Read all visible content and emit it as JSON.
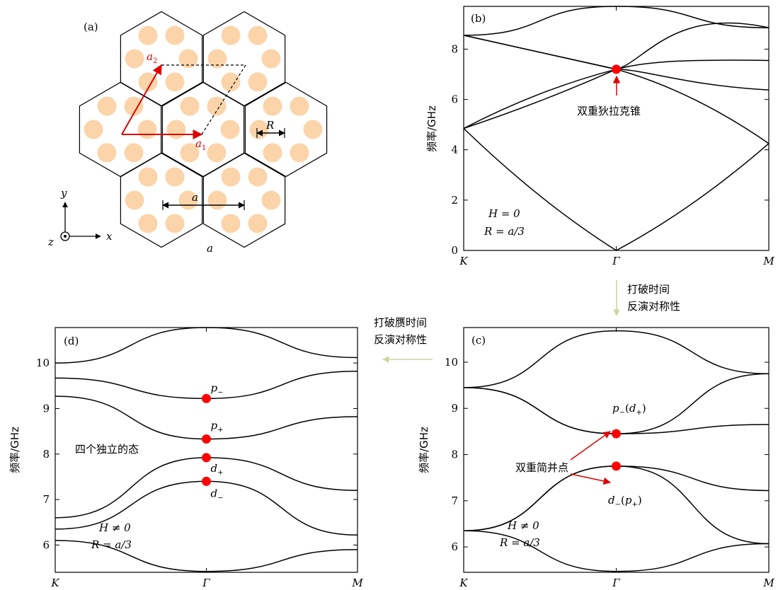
{
  "colors": {
    "cylinder": "#fcd4aa",
    "vector": "#e00000",
    "dirac_point": "#ff0000",
    "transition_arrow": "#c9d8a4",
    "line": "#000000"
  },
  "panel_a": {
    "label": "(a)",
    "vectors": {
      "a1_base": "a",
      "a1_sub": "1",
      "a2_base": "a",
      "a2_sub": "2"
    },
    "radius_label": "R",
    "lattice_label": "a",
    "bottom_label": "a",
    "axes": {
      "y": "y",
      "x": "x",
      "z": "z"
    }
  },
  "arrow_b_to_c": {
    "line1": "打破时间",
    "line2": "反演对称性"
  },
  "arrow_c_to_d": {
    "line1": "打破赝时间",
    "line2": "反演对称性"
  },
  "chart_data": [
    {
      "id": "b",
      "type": "line",
      "label": "(b)",
      "ylabel": "频率/GHz",
      "x_ticks": [
        "K",
        "Γ",
        "M"
      ],
      "ylim": [
        0,
        9.7
      ],
      "yticks": [
        0,
        2,
        4,
        6,
        8
      ],
      "grid": false,
      "params": [
        "H = 0",
        "R = a/3"
      ],
      "annotations": [
        {
          "text": "双重狄拉克锥",
          "points": [
            {
              "x": "Γ",
              "y": 7.2
            }
          ]
        }
      ],
      "series": [
        {
          "values": [
            [
              0,
              8.55
            ],
            [
              0.5,
              9.7
            ],
            [
              1,
              8.85
            ]
          ]
        },
        {
          "values": [
            [
              0,
              8.55
            ],
            [
              0.5,
              7.2
            ],
            [
              1,
              8.85
            ]
          ]
        },
        {
          "values": [
            [
              0,
              8.55
            ],
            [
              0.5,
              7.2
            ],
            [
              1,
              7.55
            ]
          ]
        },
        {
          "values": [
            [
              0,
              4.85
            ],
            [
              0.5,
              7.2
            ],
            [
              1,
              6.38
            ]
          ]
        },
        {
          "values": [
            [
              0,
              4.85
            ],
            [
              0.5,
              7.2
            ],
            [
              1,
              4.25
            ]
          ]
        },
        {
          "values": [
            [
              0,
              4.85
            ],
            [
              0.5,
              0
            ],
            [
              1,
              4.25
            ]
          ]
        }
      ]
    },
    {
      "id": "c",
      "type": "line",
      "label": "(c)",
      "ylabel": "频率/GHz",
      "x_ticks": [
        "K",
        "Γ",
        "M"
      ],
      "ylim": [
        5.45,
        10.75
      ],
      "yticks": [
        6,
        7,
        8,
        9,
        10
      ],
      "grid": false,
      "params": [
        "H ≠ 0",
        "R = a/3"
      ],
      "annotations": [
        {
          "text": "双重简并点",
          "points": [
            {
              "x": "Γ",
              "y": 8.45
            },
            {
              "x": "Γ",
              "y": 7.75
            }
          ]
        }
      ],
      "point_labels": [
        {
          "base": "p",
          "sub": "−",
          "paren_base": "d",
          "paren_sub": "+"
        },
        {
          "base": "d",
          "sub": "−",
          "paren_base": "p",
          "paren_sub": "+"
        }
      ],
      "series": [
        {
          "values": [
            [
              0,
              9.45
            ],
            [
              0.5,
              10.68
            ],
            [
              1,
              9.75
            ]
          ]
        },
        {
          "values": [
            [
              0,
              9.45
            ],
            [
              0.5,
              8.45
            ],
            [
              1,
              9.75
            ]
          ]
        },
        {
          "values": [
            [
              0,
              9.45
            ],
            [
              0.5,
              8.45
            ],
            [
              1,
              8.65
            ]
          ]
        },
        {
          "values": [
            [
              0,
              6.35
            ],
            [
              0.5,
              7.75
            ],
            [
              1,
              7.22
            ]
          ]
        },
        {
          "values": [
            [
              0,
              6.35
            ],
            [
              0.5,
              7.75
            ],
            [
              1,
              6.07
            ]
          ]
        },
        {
          "values": [
            [
              0,
              6.35
            ],
            [
              0.5,
              5.47
            ],
            [
              1,
              6.07
            ]
          ]
        }
      ]
    },
    {
      "id": "d",
      "type": "line",
      "label": "(d)",
      "ylabel": "频率/GHz",
      "x_ticks": [
        "K",
        "Γ",
        "M"
      ],
      "ylim": [
        5.4,
        10.78
      ],
      "yticks": [
        6,
        7,
        8,
        9,
        10
      ],
      "grid": false,
      "params": [
        "H ≠ 0",
        "R = a/3"
      ],
      "state_text": "四个独立的态",
      "point_labels": [
        {
          "base": "p",
          "sub": "−",
          "y": 9.22
        },
        {
          "base": "p",
          "sub": "+",
          "y": 8.33
        },
        {
          "base": "d",
          "sub": "+",
          "y": 7.92
        },
        {
          "base": "d",
          "sub": "−",
          "y": 7.4
        }
      ],
      "series": [
        {
          "values": [
            [
              0,
              10.0
            ],
            [
              0.5,
              10.78
            ],
            [
              1,
              10.12
            ]
          ]
        },
        {
          "values": [
            [
              0,
              9.67
            ],
            [
              0.5,
              9.22
            ],
            [
              1,
              9.82
            ]
          ]
        },
        {
          "values": [
            [
              0,
              9.27
            ],
            [
              0.5,
              8.33
            ],
            [
              1,
              8.82
            ]
          ]
        },
        {
          "values": [
            [
              0,
              6.6
            ],
            [
              0.5,
              7.92
            ],
            [
              1,
              7.2
            ]
          ]
        },
        {
          "values": [
            [
              0,
              6.35
            ],
            [
              0.5,
              7.4
            ],
            [
              1,
              6.22
            ]
          ]
        },
        {
          "values": [
            [
              0,
              6.1
            ],
            [
              0.5,
              5.42
            ],
            [
              1,
              5.9
            ]
          ]
        }
      ]
    }
  ]
}
